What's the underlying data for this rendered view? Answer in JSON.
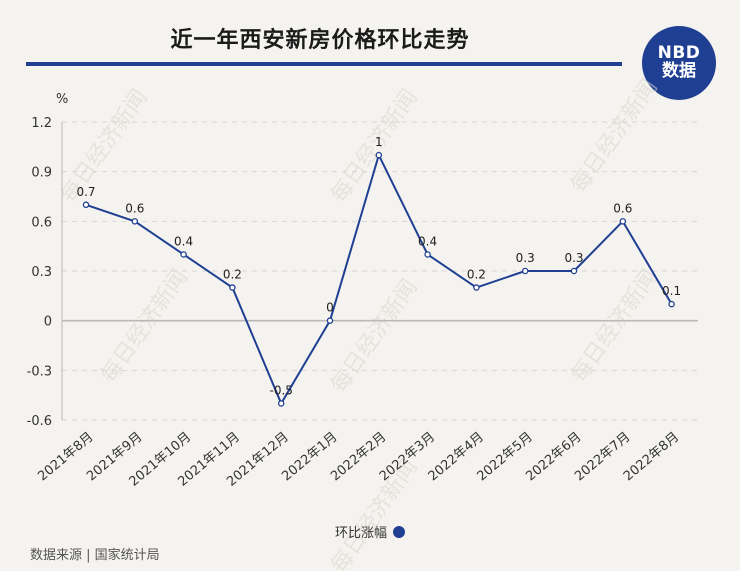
{
  "header": {
    "title": "近一年西安新房价格环比走势",
    "logo_line1": "NBD",
    "logo_line2": "数据"
  },
  "watermark": "每日经济新闻",
  "footer": {
    "source": "数据来源 | 国家统计局"
  },
  "colors": {
    "line": "#1f3f93",
    "accent": "#1f3f93"
  },
  "chart_data": {
    "type": "line",
    "title": "近一年西安新房价格环比走势",
    "xlabel": "",
    "ylabel": "%",
    "categories": [
      "2021年8月",
      "2021年9月",
      "2021年10月",
      "2021年11月",
      "2021年12月",
      "2022年1月",
      "2022年2月",
      "2022年3月",
      "2022年4月",
      "2022年5月",
      "2022年6月",
      "2022年7月",
      "2022年8月"
    ],
    "series": [
      {
        "name": "环比涨幅",
        "values": [
          0.7,
          0.6,
          0.4,
          0.2,
          -0.5,
          0,
          1,
          0.4,
          0.2,
          0.3,
          0.3,
          0.6,
          0.1
        ],
        "labels": [
          "0.7",
          "0.6",
          "0.4",
          "0.2",
          "-0.5",
          "0",
          "1",
          "0.4",
          "0.2",
          "0.3",
          "0.3",
          "0.6",
          "0.1"
        ]
      }
    ],
    "yticks": [
      "1.2",
      "0.9",
      "0.6",
      "0.3",
      "0",
      "-0.3",
      "-0.6"
    ],
    "ylim": [
      -0.6,
      1.2
    ],
    "grid": true,
    "legend": "bottom"
  }
}
